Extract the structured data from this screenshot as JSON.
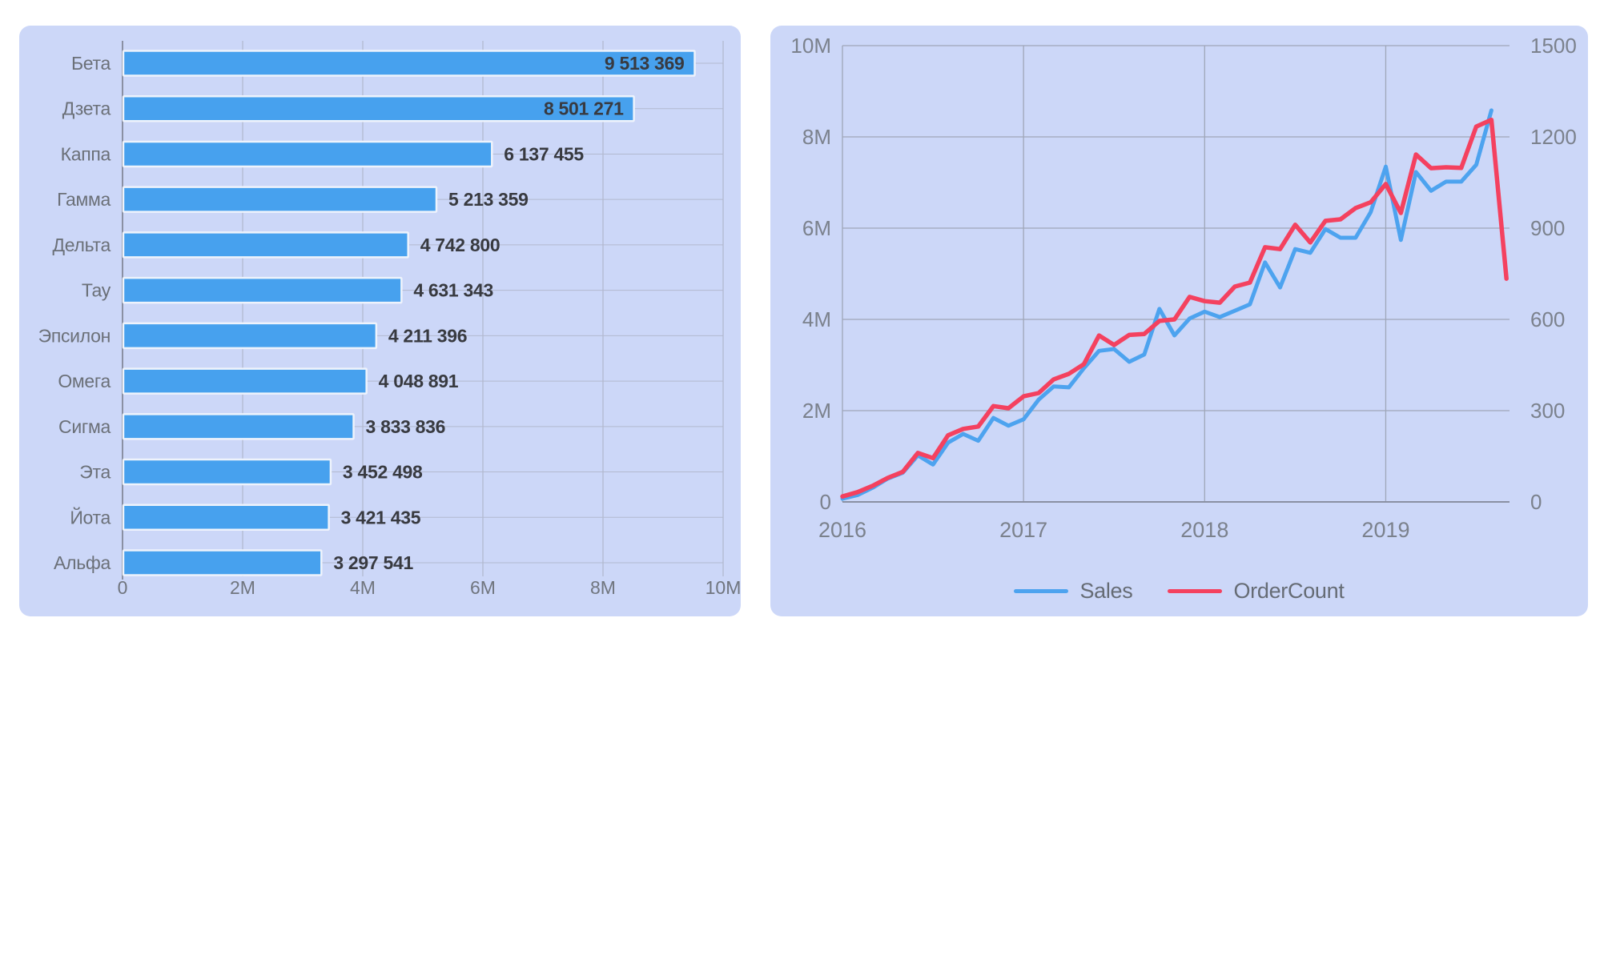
{
  "page": {
    "background": "#ffffff",
    "panel_background": "#ccd7f8"
  },
  "colors": {
    "bar_fill": "#47a1ee",
    "bar_border": "#eef3fc",
    "sales_line": "#4da3ef",
    "ordercount_line": "#f4415f",
    "gridline": "#9fa6b8",
    "gridline_light": "#b2b9cf",
    "axis_line": "#8a90a3",
    "tick_text": "#70757e",
    "axis_text_right_chart": "#7b818c",
    "category_text": "#6b7078",
    "value_text": "#383a40",
    "legend_text": "#666c75"
  },
  "chart_data": [
    {
      "type": "bar",
      "orientation": "horizontal",
      "title": "",
      "categories": [
        "Бета",
        "Дзета",
        "Каппа",
        "Гамма",
        "Дельта",
        "Тау",
        "Эпсилон",
        "Омега",
        "Сигма",
        "Эта",
        "Йота",
        "Альфа"
      ],
      "values": [
        9513369,
        8501271,
        6137455,
        5213359,
        4742800,
        4631343,
        4211396,
        4048891,
        3833836,
        3452498,
        3421435,
        3297541
      ],
      "value_labels": [
        "9 513 369",
        "8 501 271",
        "6 137 455",
        "5 213 359",
        "4 742 800",
        "4 631 343",
        "4 211 396",
        "4 048 891",
        "3 833 836",
        "3 452 498",
        "3 421 435",
        "3 297 541"
      ],
      "xlabel": "",
      "ylabel": "",
      "xlim": [
        0,
        10000000
      ],
      "x_ticks": [
        {
          "label": "0",
          "value": 0
        },
        {
          "label": "2M",
          "value": 2000000
        },
        {
          "label": "4M",
          "value": 4000000
        },
        {
          "label": "6M",
          "value": 6000000
        },
        {
          "label": "8M",
          "value": 8000000
        },
        {
          "label": "10M",
          "value": 10000000
        }
      ],
      "grid": true,
      "inside_label_threshold": 7500000
    },
    {
      "type": "line",
      "title": "",
      "x_years": [
        {
          "label": "2016",
          "month_index": 0
        },
        {
          "label": "2017",
          "month_index": 12
        },
        {
          "label": "2018",
          "month_index": 24
        },
        {
          "label": "2019",
          "month_index": 36
        }
      ],
      "months_span": 44.2,
      "left_axis": {
        "max": 10000000,
        "ticks": [
          {
            "label": "0",
            "value": 0
          },
          {
            "label": "2M",
            "value": 2000000
          },
          {
            "label": "4M",
            "value": 4000000
          },
          {
            "label": "6M",
            "value": 6000000
          },
          {
            "label": "8M",
            "value": 8000000
          },
          {
            "label": "10M",
            "value": 10000000
          }
        ]
      },
      "right_axis": {
        "max": 1500,
        "ticks": [
          {
            "label": "0",
            "value": 0
          },
          {
            "label": "300",
            "value": 300
          },
          {
            "label": "600",
            "value": 600
          },
          {
            "label": "900",
            "value": 900
          },
          {
            "label": "1200",
            "value": 1200
          },
          {
            "label": "1500",
            "value": 1500
          }
        ]
      },
      "grid": true,
      "legend_position": "bottom",
      "series": [
        {
          "name": "Sales",
          "axis": "left",
          "color": "#4da3ef",
          "start": "2016-01",
          "values": [
            70000,
            150000,
            310000,
            510000,
            640000,
            1020000,
            820000,
            1300000,
            1490000,
            1340000,
            1840000,
            1670000,
            1810000,
            2240000,
            2530000,
            2510000,
            2930000,
            3310000,
            3350000,
            3070000,
            3230000,
            4230000,
            3650000,
            4020000,
            4170000,
            4050000,
            4190000,
            4330000,
            5250000,
            4700000,
            5540000,
            5460000,
            5980000,
            5790000,
            5790000,
            6350000,
            7350000,
            5740000,
            7230000,
            6820000,
            7020000,
            7020000,
            7390000,
            8580000
          ]
        },
        {
          "name": "OrderCount",
          "axis": "right",
          "color": "#f4415f",
          "start": "2016-01",
          "values": [
            18,
            32,
            53,
            79,
            99,
            161,
            144,
            219,
            240,
            248,
            315,
            308,
            347,
            358,
            403,
            421,
            453,
            547,
            516,
            549,
            552,
            595,
            600,
            674,
            660,
            655,
            708,
            721,
            837,
            831,
            911,
            853,
            924,
            929,
            966,
            985,
            1045,
            950,
            1142,
            1097,
            1100,
            1098,
            1234,
            1256,
            734
          ]
        }
      ]
    }
  ]
}
